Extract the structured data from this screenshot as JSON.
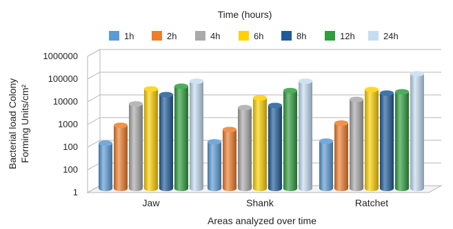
{
  "chart_data": {
    "type": "bar",
    "legend_title": "Time (hours)",
    "legend_position": "top",
    "xlabel": "Areas analyzed over time",
    "ylabel_line1": "Bacterial load Colony",
    "ylabel_line2": "Forming Units/cm²",
    "y_scale": "log",
    "y_tick_labels": [
      "1",
      "100",
      "100",
      "1000",
      "10000",
      "100000",
      "1000000"
    ],
    "categories": [
      "Jaw",
      "Shank",
      "Ratchet"
    ],
    "series": [
      {
        "name": "1h",
        "color": "#5b9bd5",
        "values": [
          130,
          150,
          160
        ]
      },
      {
        "name": "2h",
        "color": "#ee7d2a",
        "values": [
          800,
          520,
          1000
        ]
      },
      {
        "name": "4h",
        "color": "#aaaaaa",
        "values": [
          7000,
          4800,
          11000
        ]
      },
      {
        "name": "6h",
        "color": "#ffd100",
        "values": [
          32000,
          13000,
          30000
        ]
      },
      {
        "name": "8h",
        "color": "#1f5c99",
        "values": [
          18000,
          6000,
          21000
        ]
      },
      {
        "name": "12h",
        "color": "#2e9e3e",
        "values": [
          42000,
          27000,
          24000
        ]
      },
      {
        "name": "24h",
        "color": "#c5ddf2",
        "values": [
          70000,
          70000,
          150000
        ]
      }
    ],
    "grid": true
  }
}
